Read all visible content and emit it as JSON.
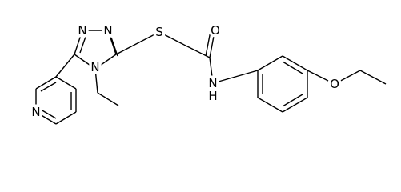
{
  "molecule": {
    "atom_labels": [
      "N",
      "N",
      "S",
      "N",
      "O",
      "N",
      "H",
      "O",
      "N"
    ]
  }
}
